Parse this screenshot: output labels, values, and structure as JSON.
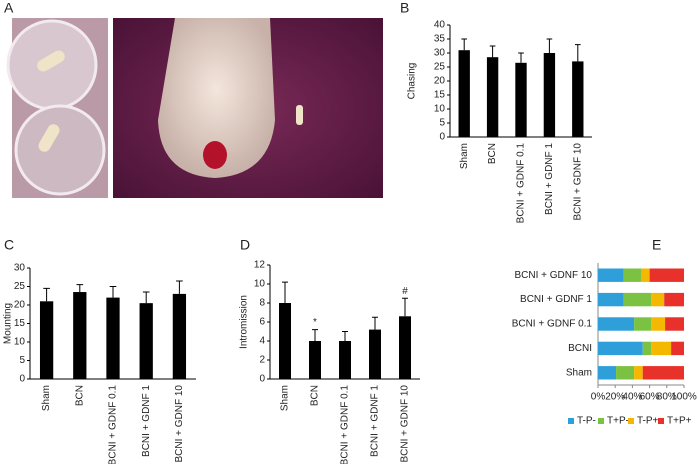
{
  "panel_a": {
    "label": "A"
  },
  "chart_data": [
    {
      "type": "bar",
      "label": "B",
      "y_label": "Chasing",
      "categories": [
        "Sham",
        "BCN",
        "BCNI + GDNF 0.1",
        "BCNI + GDNF 1",
        "BCNI + GDNF 10"
      ],
      "values": [
        31,
        28.5,
        26.5,
        30,
        27
      ],
      "errors": [
        4,
        4,
        3.5,
        5,
        6
      ],
      "color": "#000000",
      "ylim": [
        0,
        40
      ],
      "yticks": [
        0,
        5,
        10,
        15,
        20,
        25,
        30,
        35,
        40
      ]
    },
    {
      "type": "bar",
      "label": "C",
      "y_label": "Mounting",
      "categories": [
        "Sham",
        "BCN",
        "BCNI + GDNF 0.1",
        "BCNI + GDNF 1",
        "BCNI + GDNF 10"
      ],
      "values": [
        21,
        23.5,
        22,
        20.5,
        23
      ],
      "errors": [
        3.5,
        2,
        3,
        3,
        3.5
      ],
      "color": "#000000",
      "ylim": [
        0,
        30
      ],
      "yticks": [
        0,
        5,
        10,
        15,
        20,
        25,
        30
      ]
    },
    {
      "type": "bar",
      "label": "D",
      "y_label": "Intromission",
      "categories": [
        "Sham",
        "BCN",
        "BCNI + GDNF 0.1",
        "BCNI + GDNF 1",
        "BCNI + GDNF 10"
      ],
      "values": [
        8,
        4,
        4,
        5.2,
        6.6
      ],
      "errors": [
        2.2,
        1.2,
        1,
        1.3,
        1.9
      ],
      "color": "#000000",
      "markers": [
        null,
        "*",
        null,
        null,
        "#"
      ],
      "ylim": [
        0,
        12
      ],
      "yticks": [
        0,
        2,
        4,
        6,
        8,
        10,
        12
      ]
    },
    {
      "type": "stacked_hbar",
      "label": "E",
      "categories": [
        "Sham",
        "BCNI",
        "BCNI + GDNF 0.1",
        "BCNI + GDNF 1",
        "BCNI + GDNF 10"
      ],
      "series": [
        {
          "name": "T-P-",
          "color": "#2e9fd8",
          "values": [
            21,
            52,
            42,
            30,
            30
          ]
        },
        {
          "name": "T+P-",
          "color": "#7cc242",
          "values": [
            21,
            10,
            20,
            32,
            20
          ]
        },
        {
          "name": "T-P+",
          "color": "#f5b800",
          "values": [
            10,
            23,
            16,
            15,
            10
          ]
        },
        {
          "name": "T+P+",
          "color": "#e8312a",
          "values": [
            48,
            15,
            22,
            23,
            40
          ]
        }
      ],
      "xlim": [
        0,
        100
      ],
      "xticks": [
        {
          "value": 0,
          "label": "0%"
        },
        {
          "value": 20,
          "label": "20%"
        },
        {
          "value": 40,
          "label": "40%"
        },
        {
          "value": 60,
          "label": "60%"
        },
        {
          "value": 80,
          "label": "80%"
        },
        {
          "value": 100,
          "label": "100%"
        }
      ]
    }
  ]
}
